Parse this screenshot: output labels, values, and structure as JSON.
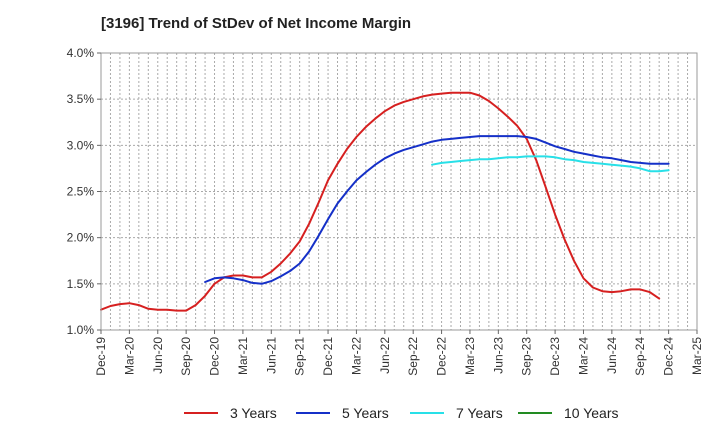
{
  "chart_data": {
    "type": "line",
    "title": "[3196]  Trend of StDev of Net Income Margin",
    "xlabel": "",
    "ylabel": "",
    "x_tick_labels": [
      "Dec-19",
      "Mar-20",
      "Jun-20",
      "Sep-20",
      "Dec-20",
      "Mar-21",
      "Jun-21",
      "Sep-21",
      "Dec-21",
      "Mar-22",
      "Jun-22",
      "Sep-22",
      "Dec-22",
      "Mar-23",
      "Jun-23",
      "Sep-23",
      "Dec-23",
      "Mar-24",
      "Jun-24",
      "Sep-24",
      "Dec-24",
      "Mar-25"
    ],
    "y_tick_labels": [
      "1.0%",
      "1.5%",
      "2.0%",
      "2.5%",
      "3.0%",
      "3.5%",
      "4.0%"
    ],
    "ylim": [
      1.0,
      4.0
    ],
    "grid": true,
    "legend_position": "bottom",
    "series": [
      {
        "name": "3 Years",
        "color": "#d62020",
        "x": [
          "2019-12",
          "2020-01",
          "2020-02",
          "2020-03",
          "2020-04",
          "2020-05",
          "2020-06",
          "2020-07",
          "2020-08",
          "2020-09",
          "2020-10",
          "2020-11",
          "2020-12",
          "2021-01",
          "2021-02",
          "2021-03",
          "2021-04",
          "2021-05",
          "2021-06",
          "2021-07",
          "2021-08",
          "2021-09",
          "2021-10",
          "2021-11",
          "2021-12",
          "2022-01",
          "2022-02",
          "2022-03",
          "2022-04",
          "2022-05",
          "2022-06",
          "2022-07",
          "2022-08",
          "2022-09",
          "2022-10",
          "2022-11",
          "2022-12",
          "2023-01",
          "2023-02",
          "2023-03",
          "2023-04",
          "2023-05",
          "2023-06",
          "2023-07",
          "2023-08",
          "2023-09",
          "2023-10",
          "2023-11",
          "2023-12",
          "2024-01",
          "2024-02",
          "2024-03",
          "2024-04",
          "2024-05",
          "2024-06",
          "2024-07",
          "2024-08",
          "2024-09",
          "2024-10",
          "2024-11",
          "2024-12"
        ],
        "values": [
          1.22,
          1.26,
          1.28,
          1.29,
          1.27,
          1.23,
          1.22,
          1.22,
          1.21,
          1.21,
          1.27,
          1.37,
          1.5,
          1.57,
          1.59,
          1.59,
          1.57,
          1.57,
          1.63,
          1.72,
          1.83,
          1.96,
          2.15,
          2.38,
          2.62,
          2.8,
          2.96,
          3.09,
          3.2,
          3.29,
          3.37,
          3.43,
          3.47,
          3.5,
          3.53,
          3.55,
          3.56,
          3.57,
          3.57,
          3.57,
          3.54,
          3.48,
          3.4,
          3.31,
          3.21,
          3.07,
          2.84,
          2.55,
          2.25,
          1.98,
          1.75,
          1.56,
          1.46,
          1.42,
          1.41,
          1.42,
          1.44,
          1.44,
          1.41,
          1.34,
          null
        ]
      },
      {
        "name": "5 Years",
        "color": "#1530c8",
        "x": [
          "2020-11",
          "2020-12",
          "2021-01",
          "2021-02",
          "2021-03",
          "2021-04",
          "2021-05",
          "2021-06",
          "2021-07",
          "2021-08",
          "2021-09",
          "2021-10",
          "2021-11",
          "2021-12",
          "2022-01",
          "2022-02",
          "2022-03",
          "2022-04",
          "2022-05",
          "2022-06",
          "2022-07",
          "2022-08",
          "2022-09",
          "2022-10",
          "2022-11",
          "2022-12",
          "2023-01",
          "2023-02",
          "2023-03",
          "2023-04",
          "2023-05",
          "2023-06",
          "2023-07",
          "2023-08",
          "2023-09",
          "2023-10",
          "2023-11",
          "2023-12",
          "2024-01",
          "2024-02",
          "2024-03",
          "2024-04",
          "2024-05",
          "2024-06",
          "2024-07",
          "2024-08",
          "2024-09",
          "2024-10",
          "2024-11",
          "2024-12"
        ],
        "values": [
          1.52,
          1.56,
          1.57,
          1.56,
          1.54,
          1.51,
          1.5,
          1.53,
          1.58,
          1.64,
          1.72,
          1.85,
          2.02,
          2.2,
          2.37,
          2.5,
          2.62,
          2.71,
          2.79,
          2.86,
          2.91,
          2.95,
          2.98,
          3.01,
          3.04,
          3.06,
          3.07,
          3.08,
          3.09,
          3.1,
          3.1,
          3.1,
          3.1,
          3.1,
          3.09,
          3.07,
          3.03,
          2.99,
          2.96,
          2.93,
          2.91,
          2.89,
          2.87,
          2.86,
          2.84,
          2.82,
          2.81,
          2.8,
          2.8,
          2.8
        ]
      },
      {
        "name": "7 Years",
        "color": "#28e0e8",
        "x": [
          "2022-11",
          "2022-12",
          "2023-01",
          "2023-02",
          "2023-03",
          "2023-04",
          "2023-05",
          "2023-06",
          "2023-07",
          "2023-08",
          "2023-09",
          "2023-10",
          "2023-11",
          "2023-12",
          "2024-01",
          "2024-02",
          "2024-03",
          "2024-04",
          "2024-05",
          "2024-06",
          "2024-07",
          "2024-08",
          "2024-09",
          "2024-10",
          "2024-11",
          "2024-12"
        ],
        "values": [
          2.79,
          2.81,
          2.82,
          2.83,
          2.84,
          2.85,
          2.85,
          2.86,
          2.87,
          2.87,
          2.88,
          2.88,
          2.88,
          2.87,
          2.85,
          2.84,
          2.82,
          2.81,
          2.8,
          2.79,
          2.78,
          2.77,
          2.75,
          2.72,
          2.72,
          2.73
        ]
      },
      {
        "name": "10 Years",
        "color": "#228b22",
        "x": [],
        "values": []
      }
    ]
  }
}
